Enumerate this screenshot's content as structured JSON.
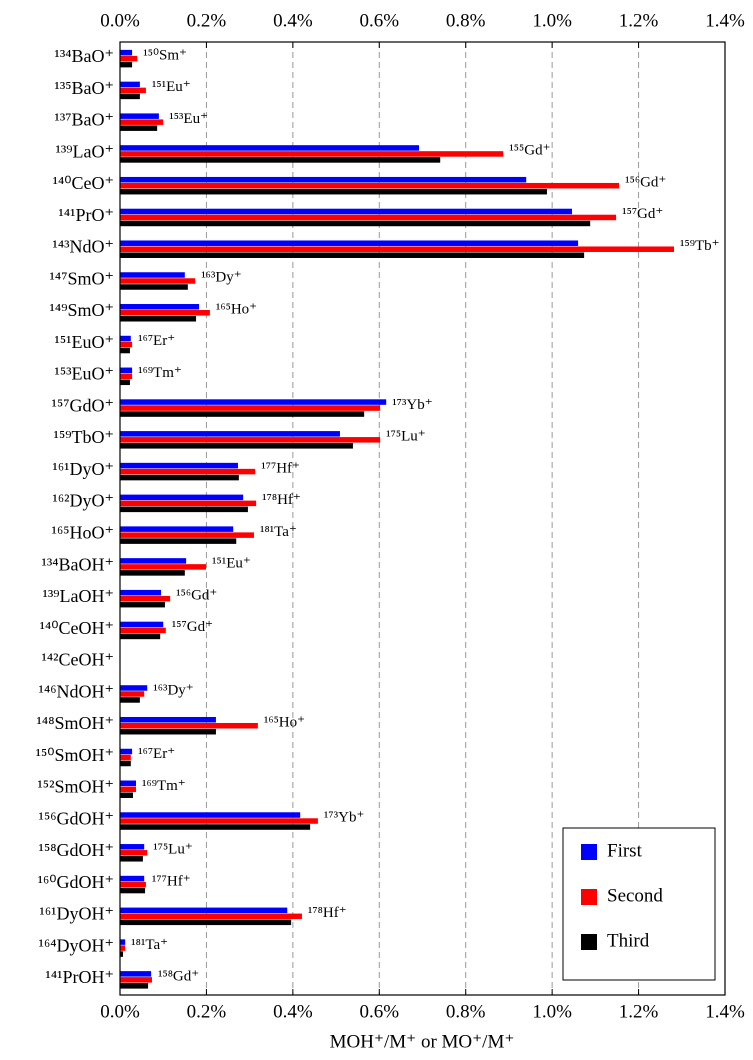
{
  "chart_data": {
    "type": "bar",
    "orientation": "horizontal",
    "x_label": "MOH⁺/M⁺ or MO⁺/M⁺",
    "categories": [
      "¹³⁴BaO⁺",
      "¹³⁵BaO⁺",
      "¹³⁷BaO⁺",
      "¹³⁹LaO⁺",
      "¹⁴⁰CeO⁺",
      "¹⁴¹PrO⁺",
      "¹⁴³NdO⁺",
      "¹⁴⁷SmO⁺",
      "¹⁴⁹SmO⁺",
      "¹⁵¹EuO⁺",
      "¹⁵³EuO⁺",
      "¹⁵⁷GdO⁺",
      "¹⁵⁹TbO⁺",
      "¹⁶¹DyO⁺",
      "¹⁶²DyO⁺",
      "¹⁶⁵HoO⁺",
      "¹³⁴BaOH⁺",
      "¹³⁹LaOH⁺",
      "¹⁴⁰CeOH⁺",
      "¹⁴²CeOH⁺",
      "¹⁴⁶NdOH⁺",
      "¹⁴⁸SmOH⁺",
      "¹⁵⁰SmOH⁺",
      "¹⁵²SmOH⁺",
      "¹⁵⁶GdOH⁺",
      "¹⁵⁸GdOH⁺",
      "¹⁶⁰GdOH⁺",
      "¹⁶¹DyOH⁺",
      "¹⁶⁴DyOH⁺",
      "¹⁴¹PrOH⁺"
    ],
    "annotations": [
      "¹⁵⁰Sm⁺",
      "¹⁵¹Eu⁺",
      "¹⁵³Eu⁺",
      "¹⁵⁵Gd⁺",
      "¹⁵⁶Gd⁺",
      "¹⁵⁷Gd⁺",
      "¹⁵⁹Tb⁺",
      "¹⁶³Dy⁺",
      "¹⁶⁵Ho⁺",
      "¹⁶⁷Er⁺",
      "¹⁶⁹Tm⁺",
      "¹⁷³Yb⁺",
      "¹⁷⁵Lu⁺",
      "¹⁷⁷Hf⁺",
      "¹⁷⁸Hf⁺",
      "¹⁸¹Ta⁺",
      "¹⁵¹Eu⁺",
      "¹⁵⁶Gd⁺",
      "¹⁵⁷Gd⁺",
      null,
      "¹⁶³Dy⁺",
      "¹⁶⁵Ho⁺",
      "¹⁶⁷Er⁺",
      "¹⁶⁹Tm⁺",
      "¹⁷³Yb⁺",
      "¹⁷⁵Lu⁺",
      "¹⁷⁷Hf⁺",
      "¹⁷⁸Hf⁺",
      "¹⁸¹Ta⁺",
      "¹⁵⁸Gd⁺"
    ],
    "series": [
      {
        "name": "First",
        "color": "#0000ff",
        "values": [
          0.028,
          0.046,
          0.09,
          0.692,
          0.94,
          1.046,
          1.06,
          0.15,
          0.183,
          0.025,
          0.028,
          0.616,
          0.509,
          0.273,
          0.285,
          0.262,
          0.153,
          0.095,
          0.1,
          null,
          0.063,
          0.222,
          0.028,
          0.037,
          0.417,
          0.056,
          0.056,
          0.387,
          0.012,
          0.072
        ]
      },
      {
        "name": "Second",
        "color": "#ff0000",
        "values": [
          0.04,
          0.06,
          0.1,
          0.887,
          1.155,
          1.148,
          1.282,
          0.174,
          0.208,
          0.028,
          0.028,
          0.602,
          0.602,
          0.313,
          0.315,
          0.31,
          0.199,
          0.116,
          0.106,
          null,
          0.056,
          0.319,
          0.025,
          0.037,
          0.458,
          0.063,
          0.06,
          0.421,
          0.012,
          0.074
        ]
      },
      {
        "name": "Third",
        "color": "#000000",
        "values": [
          0.028,
          0.046,
          0.086,
          0.741,
          0.988,
          1.088,
          1.074,
          0.157,
          0.176,
          0.023,
          0.023,
          0.565,
          0.539,
          0.275,
          0.296,
          0.269,
          0.15,
          0.104,
          0.093,
          null,
          0.046,
          0.222,
          0.025,
          0.03,
          0.44,
          0.053,
          0.058,
          0.396,
          0.007,
          0.065
        ]
      }
    ],
    "xlim": [
      0,
      1.4
    ],
    "xticks": [
      {
        "value": 0,
        "label": "0.0%"
      },
      {
        "value": 0.2,
        "label": "0.2%"
      },
      {
        "value": 0.4,
        "label": "0.4%"
      },
      {
        "value": 0.6,
        "label": "0.6%"
      },
      {
        "value": 0.8,
        "label": "0.8%"
      },
      {
        "value": 1.0,
        "label": "1.0%"
      },
      {
        "value": 1.2,
        "label": "1.2%"
      },
      {
        "value": 1.4,
        "label": "1.4%"
      }
    ],
    "grid": true,
    "legend": "lower right"
  }
}
